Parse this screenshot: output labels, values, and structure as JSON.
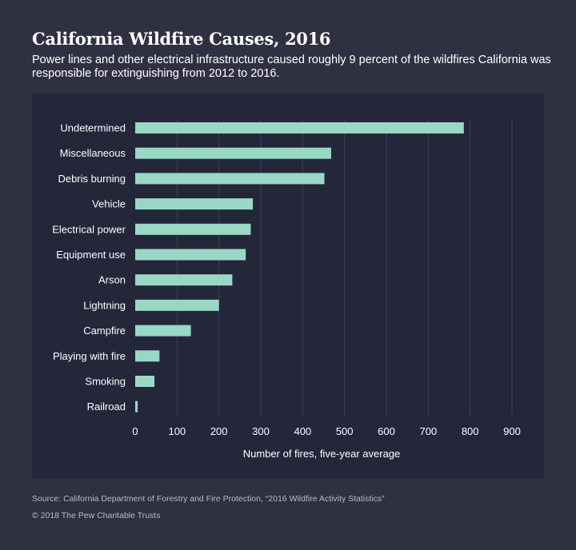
{
  "header": {
    "title": "California Wildfire Causes, 2016",
    "subtitle": "Power lines and other electrical infrastructure caused roughly 9 percent of the wildfires California was responsible for extinguishing from 2012 to 2016."
  },
  "chart_data": {
    "type": "bar",
    "orientation": "horizontal",
    "categories": [
      "Undetermined",
      "Miscellaneous",
      "Debris burning",
      "Vehicle",
      "Electrical power",
      "Equipment use",
      "Arson",
      "Lightning",
      "Campfire",
      "Playing with fire",
      "Smoking",
      "Railroad"
    ],
    "values": [
      785,
      468,
      452,
      281,
      276,
      264,
      232,
      200,
      133,
      58,
      46,
      6
    ],
    "xlabel": "Number of fires, five-year average",
    "xlim": [
      0,
      900
    ],
    "xticks": [
      0,
      100,
      200,
      300,
      400,
      500,
      600,
      700,
      800,
      900
    ],
    "grid": "vertical",
    "bar_color": "#9ad8c6",
    "grid_color": "#3e4155"
  },
  "footer": {
    "source": "Source: California Department of Forestry and Fire Protection, “2016 Wildfire Activity Statistics”",
    "copyright": "© 2018 The Pew Charitable Trusts"
  }
}
